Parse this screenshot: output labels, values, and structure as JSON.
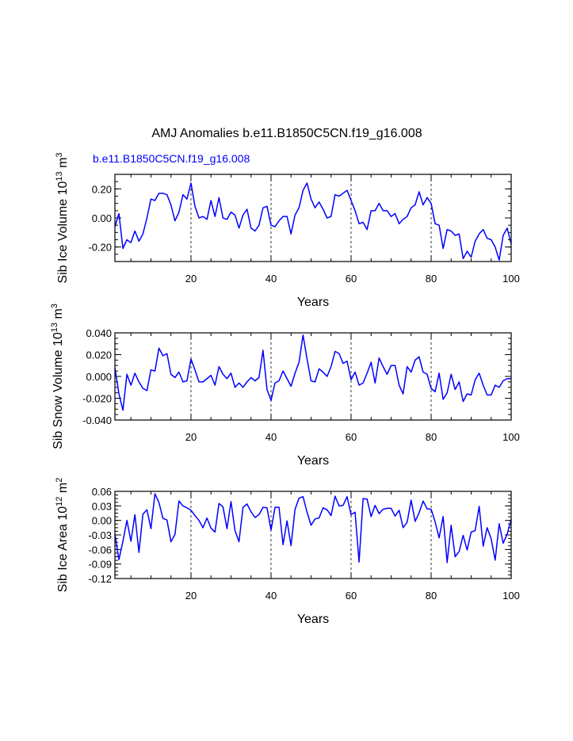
{
  "figure": {
    "title": "AMJ Anomalies b.e11.B1850C5CN.f19_g16.008",
    "subtitle": "b.e11.B1850C5CN.f19_g16.008",
    "line_color": "#0000ff",
    "subtitle_color": "#0000ff"
  },
  "chart_data": [
    {
      "type": "line",
      "name": "ice-volume",
      "ylabel": "Sib Ice Volume 10",
      "ylabel_exp": "13",
      "ylabel_unit": " m",
      "ylabel_unit_exp": "3",
      "xlabel": "Years",
      "xlim": [
        1,
        100
      ],
      "ylim": [
        -0.3,
        0.3
      ],
      "xticks": [
        20,
        40,
        60,
        80,
        100
      ],
      "xtick_labels": [
        "20",
        "40",
        "60",
        "80",
        "100"
      ],
      "yticks": [
        0.2,
        0.0,
        -0.2
      ],
      "ytick_labels": [
        "0.20",
        "0.00",
        "-0.20"
      ],
      "grid_x": [
        20,
        40,
        60,
        80
      ],
      "x": [
        1,
        2,
        3,
        4,
        5,
        6,
        7,
        8,
        9,
        10,
        11,
        12,
        13,
        14,
        15,
        16,
        17,
        18,
        19,
        20,
        21,
        22,
        23,
        24,
        25,
        26,
        27,
        28,
        29,
        30,
        31,
        32,
        33,
        34,
        35,
        36,
        37,
        38,
        39,
        40,
        41,
        42,
        43,
        44,
        45,
        46,
        47,
        48,
        49,
        50,
        51,
        52,
        53,
        54,
        55,
        56,
        57,
        58,
        59,
        60,
        61,
        62,
        63,
        64,
        65,
        66,
        67,
        68,
        69,
        70,
        71,
        72,
        73,
        74,
        75,
        76,
        77,
        78,
        79,
        80,
        81,
        82,
        83,
        84,
        85,
        86,
        87,
        88,
        89,
        90,
        91,
        92,
        93,
        94,
        95,
        96,
        97,
        98,
        99,
        100
      ],
      "series": [
        {
          "name": "Sib Ice Volume",
          "values": [
            -0.06,
            0.03,
            -0.21,
            -0.15,
            -0.17,
            -0.09,
            -0.16,
            -0.11,
            0.0,
            0.13,
            0.12,
            0.17,
            0.17,
            0.16,
            0.09,
            -0.02,
            0.04,
            0.16,
            0.13,
            0.24,
            0.08,
            0.0,
            0.01,
            -0.01,
            0.12,
            0.01,
            0.14,
            0.0,
            -0.01,
            0.04,
            0.02,
            -0.07,
            0.02,
            0.06,
            -0.07,
            -0.09,
            -0.05,
            0.07,
            0.08,
            -0.05,
            -0.06,
            -0.02,
            0.01,
            0.01,
            -0.11,
            0.02,
            0.07,
            0.19,
            0.24,
            0.13,
            0.07,
            0.11,
            0.06,
            0.0,
            0.01,
            0.16,
            0.15,
            0.17,
            0.19,
            0.12,
            0.05,
            -0.04,
            -0.03,
            -0.08,
            0.05,
            0.05,
            0.1,
            0.05,
            0.05,
            0.01,
            0.03,
            -0.04,
            -0.01,
            0.01,
            0.07,
            0.09,
            0.18,
            0.09,
            0.14,
            0.1,
            -0.04,
            -0.05,
            -0.21,
            -0.08,
            -0.09,
            -0.12,
            -0.11,
            -0.28,
            -0.23,
            -0.27,
            -0.16,
            -0.11,
            -0.08,
            -0.14,
            -0.15,
            -0.2,
            -0.29,
            -0.12,
            -0.07,
            -0.18
          ]
        }
      ]
    },
    {
      "type": "line",
      "name": "snow-volume",
      "ylabel": "Sib Snow Volume 10",
      "ylabel_exp": "13",
      "ylabel_unit": " m",
      "ylabel_unit_exp": "3",
      "xlabel": "Years",
      "xlim": [
        1,
        100
      ],
      "ylim": [
        -0.04,
        0.04
      ],
      "xticks": [
        20,
        40,
        60,
        80,
        100
      ],
      "xtick_labels": [
        "20",
        "40",
        "60",
        "80",
        "100"
      ],
      "yticks": [
        0.04,
        0.02,
        0.0,
        -0.02,
        -0.04
      ],
      "ytick_labels": [
        "0.040",
        "0.020",
        "0.000",
        "-0.020",
        "-0.040"
      ],
      "grid_x": [
        20,
        40,
        60,
        80
      ],
      "x": [
        1,
        2,
        3,
        4,
        5,
        6,
        7,
        8,
        9,
        10,
        11,
        12,
        13,
        14,
        15,
        16,
        17,
        18,
        19,
        20,
        21,
        22,
        23,
        24,
        25,
        26,
        27,
        28,
        29,
        30,
        31,
        32,
        33,
        34,
        35,
        36,
        37,
        38,
        39,
        40,
        41,
        42,
        43,
        44,
        45,
        46,
        47,
        48,
        49,
        50,
        51,
        52,
        53,
        54,
        55,
        56,
        57,
        58,
        59,
        60,
        61,
        62,
        63,
        64,
        65,
        66,
        67,
        68,
        69,
        70,
        71,
        72,
        73,
        74,
        75,
        76,
        77,
        78,
        79,
        80,
        81,
        82,
        83,
        84,
        85,
        86,
        87,
        88,
        89,
        90,
        91,
        92,
        93,
        94,
        95,
        96,
        97,
        98,
        99,
        100
      ],
      "series": [
        {
          "name": "Sib Snow Volume",
          "values": [
            0.008,
            -0.016,
            -0.031,
            0.002,
            -0.008,
            0.003,
            -0.005,
            -0.011,
            -0.013,
            0.006,
            0.005,
            0.026,
            0.019,
            0.021,
            0.002,
            -0.001,
            0.004,
            -0.005,
            -0.004,
            0.016,
            0.006,
            -0.005,
            -0.005,
            -0.002,
            0.001,
            -0.008,
            0.009,
            0.002,
            -0.002,
            0.003,
            -0.01,
            -0.006,
            -0.01,
            -0.005,
            -0.001,
            -0.004,
            -0.001,
            0.024,
            -0.012,
            -0.022,
            -0.006,
            -0.004,
            0.005,
            -0.002,
            -0.009,
            0.003,
            0.013,
            0.038,
            0.016,
            -0.004,
            -0.005,
            0.007,
            0.004,
            0.0,
            0.009,
            0.023,
            0.021,
            0.012,
            0.014,
            -0.003,
            0.004,
            -0.008,
            -0.006,
            0.003,
            0.013,
            -0.006,
            0.017,
            0.009,
            0.002,
            0.01,
            0.01,
            -0.008,
            -0.016,
            0.009,
            0.004,
            0.015,
            0.018,
            0.004,
            0.002,
            -0.011,
            -0.014,
            0.003,
            -0.021,
            -0.015,
            0.002,
            -0.012,
            -0.005,
            -0.023,
            -0.016,
            -0.017,
            -0.003,
            0.003,
            -0.008,
            -0.017,
            -0.017,
            -0.008,
            -0.01,
            -0.004,
            -0.002,
            -0.002
          ]
        }
      ]
    },
    {
      "type": "line",
      "name": "ice-area",
      "ylabel": "Sib Ice Area 10",
      "ylabel_exp": "12",
      "ylabel_unit": " m",
      "ylabel_unit_exp": "2",
      "xlabel": "Years",
      "xlim": [
        1,
        100
      ],
      "ylim": [
        -0.12,
        0.06
      ],
      "xticks": [
        20,
        40,
        60,
        80,
        100
      ],
      "xtick_labels": [
        "20",
        "40",
        "60",
        "80",
        "100"
      ],
      "yticks": [
        0.06,
        0.03,
        0.0,
        -0.03,
        -0.06,
        -0.09,
        -0.12
      ],
      "ytick_labels": [
        "0.06",
        "0.03",
        "0.00",
        "-0.03",
        "-0.06",
        "-0.09",
        "-0.12"
      ],
      "grid_x": [
        20,
        40,
        60,
        80
      ],
      "x": [
        1,
        2,
        3,
        4,
        5,
        6,
        7,
        8,
        9,
        10,
        11,
        12,
        13,
        14,
        15,
        16,
        17,
        18,
        19,
        20,
        21,
        22,
        23,
        24,
        25,
        26,
        27,
        28,
        29,
        30,
        31,
        32,
        33,
        34,
        35,
        36,
        37,
        38,
        39,
        40,
        41,
        42,
        43,
        44,
        45,
        46,
        47,
        48,
        49,
        50,
        51,
        52,
        53,
        54,
        55,
        56,
        57,
        58,
        59,
        60,
        61,
        62,
        63,
        64,
        65,
        66,
        67,
        68,
        69,
        70,
        71,
        72,
        73,
        74,
        75,
        76,
        77,
        78,
        79,
        80,
        81,
        82,
        83,
        84,
        85,
        86,
        87,
        88,
        89,
        90,
        91,
        92,
        93,
        94,
        95,
        96,
        97,
        98,
        99,
        100
      ],
      "series": [
        {
          "name": "Sib Ice Area",
          "values": [
            -0.028,
            -0.081,
            -0.043,
            0.0,
            -0.043,
            0.012,
            -0.066,
            0.013,
            0.022,
            -0.017,
            0.055,
            0.037,
            0.004,
            0.001,
            -0.044,
            -0.029,
            0.04,
            0.03,
            0.026,
            0.021,
            0.01,
            0.0,
            -0.015,
            0.005,
            -0.016,
            -0.024,
            0.035,
            0.028,
            -0.017,
            0.039,
            -0.021,
            -0.044,
            0.027,
            0.034,
            0.018,
            0.006,
            0.012,
            0.027,
            0.026,
            -0.02,
            0.027,
            0.027,
            -0.05,
            -0.001,
            -0.052,
            0.023,
            0.046,
            0.049,
            0.017,
            -0.01,
            0.003,
            0.005,
            0.026,
            0.022,
            0.01,
            0.05,
            0.03,
            0.031,
            0.049,
            0.012,
            0.017,
            -0.086,
            0.045,
            0.044,
            0.008,
            0.031,
            0.014,
            0.023,
            0.025,
            0.025,
            0.009,
            0.021,
            -0.015,
            -0.004,
            0.042,
            -0.002,
            0.016,
            0.04,
            0.024,
            0.023,
            -0.003,
            -0.036,
            0.008,
            -0.087,
            -0.01,
            -0.075,
            -0.064,
            -0.031,
            -0.061,
            -0.024,
            -0.021,
            0.029,
            -0.053,
            -0.015,
            -0.038,
            -0.082,
            -0.007,
            -0.047,
            -0.028,
            0.002
          ]
        }
      ]
    }
  ]
}
